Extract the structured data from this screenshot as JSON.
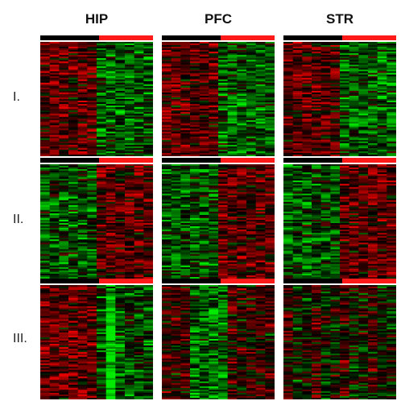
{
  "chart_data": {
    "type": "heatmap",
    "columns": [
      "HIP",
      "PFC",
      "STR"
    ],
    "rows": [
      "I.",
      "II.",
      "III."
    ],
    "group_bar_colors": [
      "#000000",
      "#ff1a1a"
    ],
    "color_scale": {
      "low": "#00ff00",
      "mid": "#000000",
      "high": "#ff0000"
    },
    "panels": [
      {
        "column": "HIP",
        "row": "I.",
        "pattern": "red-then-green"
      },
      {
        "column": "PFC",
        "row": "I.",
        "pattern": "red-then-green"
      },
      {
        "column": "STR",
        "row": "I.",
        "pattern": "red-then-green"
      },
      {
        "column": "HIP",
        "row": "II.",
        "pattern": "green-then-red"
      },
      {
        "column": "PFC",
        "row": "II.",
        "pattern": "green-then-red"
      },
      {
        "column": "STR",
        "row": "II.",
        "pattern": "green-then-red"
      },
      {
        "column": "HIP",
        "row": "III.",
        "pattern": "red-then-green-strong"
      },
      {
        "column": "PFC",
        "row": "III.",
        "pattern": "mixed-green-center"
      },
      {
        "column": "STR",
        "row": "III.",
        "pattern": "mixed"
      }
    ]
  }
}
